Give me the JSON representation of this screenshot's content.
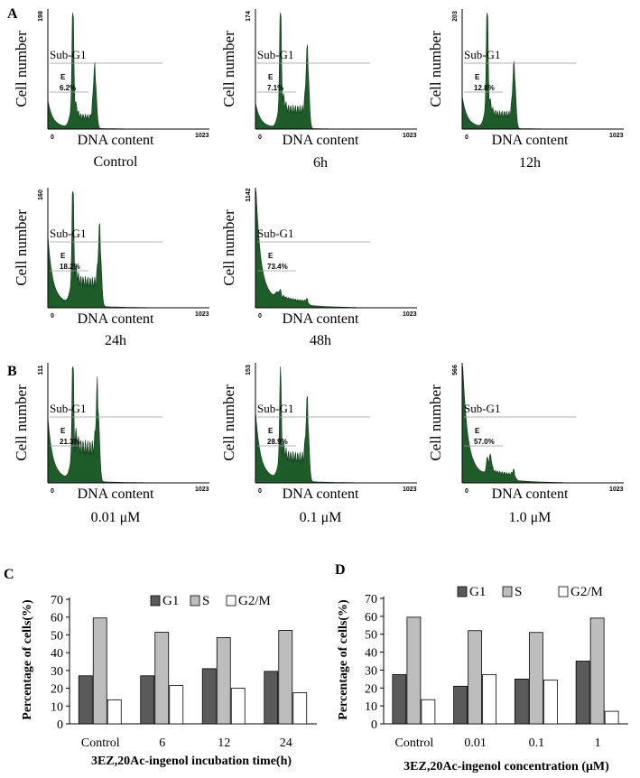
{
  "colors": {
    "histogram_fill": "#1e5c2a",
    "histogram_edge": "#103a18",
    "gate_line": "#9a9a9a",
    "g1": "#5a5a5a",
    "s": "#bdbdbd",
    "g2m": "#ffffff"
  },
  "chart_data": [
    {
      "type": "area",
      "panel": "A",
      "panel_label": "A",
      "condition": "Control",
      "xlabel": "DNA content",
      "ylabel": "Cell number",
      "x_min_label": "0",
      "x_max_label": "1023",
      "y_max_label": "198",
      "gate_label": "Sub-G1",
      "marker": "E",
      "sub_g1_percent": "6.2%",
      "g1_height": 1.0,
      "g2_height": 0.45,
      "g2_position": 0.47,
      "s_level": 0.12,
      "debris": 0.22
    },
    {
      "type": "area",
      "panel": "A",
      "panel_label": "",
      "condition": "6h",
      "xlabel": "DNA content",
      "ylabel": "Cell number",
      "x_min_label": "0",
      "x_max_label": "1023",
      "y_max_label": "174",
      "gate_label": "Sub-G1",
      "marker": "E",
      "sub_g1_percent": "7.1%",
      "g1_height": 1.0,
      "g2_height": 0.55,
      "g2_position": 0.52,
      "s_level": 0.2,
      "debris": 0.2
    },
    {
      "type": "area",
      "panel": "A",
      "panel_label": "",
      "condition": "12h",
      "xlabel": "DNA content",
      "ylabel": "Cell number",
      "x_min_label": "0",
      "x_max_label": "1023",
      "y_max_label": "203",
      "gate_label": "Sub-G1",
      "marker": "E",
      "sub_g1_percent": "12.8%",
      "g1_height": 1.0,
      "g2_height": 0.45,
      "g2_position": 0.52,
      "s_level": 0.15,
      "debris": 0.25
    },
    {
      "type": "area",
      "panel": "A",
      "panel_label": "",
      "condition": "24h",
      "xlabel": "DNA content",
      "ylabel": "Cell number",
      "x_min_label": "0",
      "x_max_label": "1023",
      "y_max_label": "160",
      "gate_label": "Sub-G1",
      "marker": "E",
      "sub_g1_percent": "18.2%",
      "g1_height": 1.0,
      "g2_height": 0.5,
      "g2_position": 0.52,
      "s_level": 0.25,
      "debris": 0.55
    },
    {
      "type": "area",
      "panel": "A",
      "panel_label": "",
      "condition": "48h",
      "xlabel": "DNA content",
      "ylabel": "Cell number",
      "x_min_label": "0",
      "x_max_label": "1023",
      "y_max_label": "1142",
      "gate_label": "Sub-G1",
      "marker": "E",
      "sub_g1_percent": "73.4%",
      "g1_height": 0.06,
      "g2_height": 0.02,
      "g2_position": 0.52,
      "s_level": 0.04,
      "debris": 1.0
    },
    {
      "type": "area",
      "panel": "B",
      "panel_label": "B",
      "condition": "0.01   μM",
      "xlabel": "DNA content",
      "ylabel": "Cell number",
      "x_min_label": "0",
      "x_max_label": "1023",
      "y_max_label": "111",
      "gate_label": "Sub-G1",
      "marker": "E",
      "sub_g1_percent": "21.3%",
      "g1_height": 1.0,
      "g2_height": 0.62,
      "g2_position": 0.5,
      "s_level": 0.35,
      "debris": 0.5
    },
    {
      "type": "area",
      "panel": "B",
      "panel_label": "",
      "condition": "0.1   μM",
      "xlabel": "DNA content",
      "ylabel": "Cell number",
      "x_min_label": "0",
      "x_max_label": "1023",
      "y_max_label": "153",
      "gate_label": "Sub-G1",
      "marker": "E",
      "sub_g1_percent": "28.9%",
      "g1_height": 0.85,
      "g2_height": 0.52,
      "g2_position": 0.52,
      "s_level": 0.25,
      "debris": 0.55
    },
    {
      "type": "area",
      "panel": "B",
      "panel_label": "",
      "condition": "1.0   μM",
      "xlabel": "DNA content",
      "ylabel": "Cell number",
      "x_min_label": "0",
      "x_max_label": "1023",
      "y_max_label": "566",
      "gate_label": "Sub-G1",
      "marker": "E",
      "sub_g1_percent": "57.0%",
      "g1_height": 0.12,
      "g2_height": 0.04,
      "g2_position": 0.52,
      "s_level": 0.06,
      "debris": 1.0
    },
    {
      "type": "bar",
      "panel_label": "C",
      "categories": [
        "Control",
        "6",
        "12",
        "24"
      ],
      "series": [
        {
          "name": "G1",
          "values": [
            27,
            27,
            31,
            29.5
          ]
        },
        {
          "name": "S",
          "values": [
            59.5,
            51.5,
            48.5,
            52.5
          ]
        },
        {
          "name": "G2/M",
          "values": [
            13.5,
            21.5,
            20,
            17.5
          ]
        }
      ],
      "xlabel": "3EZ,20Ac-ingenol  incubation   time(h)",
      "ylabel": "Percentage of cells(%)",
      "ylim": [
        0,
        70
      ],
      "yticks": [
        "0",
        "10",
        "20",
        "30",
        "40",
        "50",
        "60",
        "70"
      ],
      "legend": "top-right"
    },
    {
      "type": "bar",
      "panel_label": "D",
      "categories": [
        "Control",
        "0.01",
        "0.1",
        "1"
      ],
      "series": [
        {
          "name": "G1",
          "values": [
            27.5,
            21,
            25,
            35
          ]
        },
        {
          "name": "S",
          "values": [
            59.5,
            52,
            51,
            59
          ]
        },
        {
          "name": "G2/M",
          "values": [
            13.5,
            27.5,
            24.5,
            7
          ]
        }
      ],
      "xlabel": "3EZ,20Ac-ingenol concentration  (μM)",
      "ylabel": "Percentage of cells(%)",
      "ylim": [
        0,
        70
      ],
      "yticks": [
        "0",
        "10",
        "20",
        "30",
        "40",
        "50",
        "60",
        "70"
      ],
      "legend": "top-right"
    }
  ]
}
